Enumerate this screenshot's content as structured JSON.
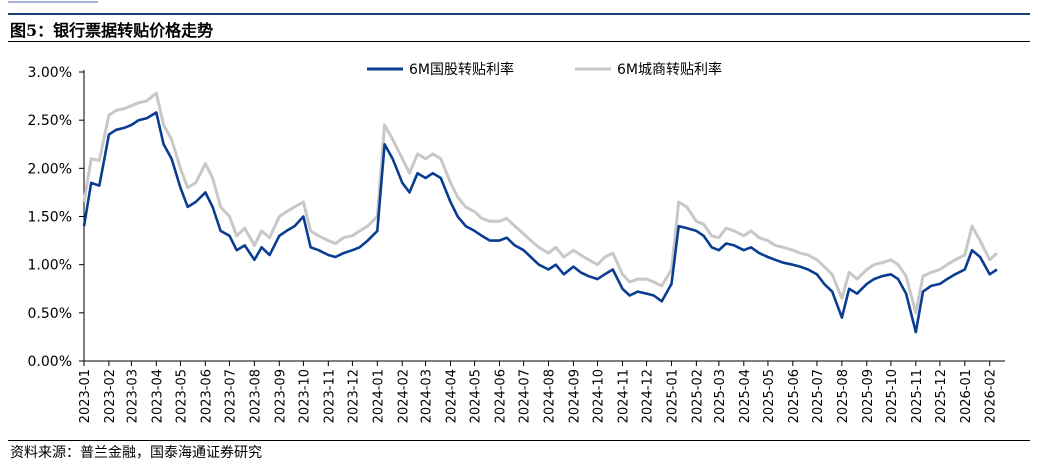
{
  "header": {
    "figure_title": "图5：银行票据转贴价格走势"
  },
  "footer": {
    "source": "资料来源：普兰金融，国泰海通证券研究"
  },
  "colors": {
    "series_1": "#0a3d91",
    "series_2": "#c8c8c8"
  },
  "chart_data": {
    "type": "line",
    "title": "",
    "xlabel": "",
    "ylabel": "",
    "ylim": [
      0,
      0.03
    ],
    "y_ticks": [
      "0.00%",
      "0.50%",
      "1.00%",
      "1.50%",
      "2.00%",
      "2.50%",
      "3.00%"
    ],
    "y_tick_values": [
      0,
      0.005,
      0.01,
      0.015,
      0.02,
      0.025,
      0.03
    ],
    "x_ticks": [
      "2023-01",
      "2023-02",
      "2023-03",
      "2023-04",
      "2023-05",
      "2023-06",
      "2023-07",
      "2023-08",
      "2023-09",
      "2023-10",
      "2023-11",
      "2023-12",
      "2024-01",
      "2024-02",
      "2024-03",
      "2024-04",
      "2024-05",
      "2024-06",
      "2024-07",
      "2024-08",
      "2024-09",
      "2024-10",
      "2024-11",
      "2024-12",
      "2025-01",
      "2025-02",
      "2025-03",
      "2025-04",
      "2025-05",
      "2025-06",
      "2025-07",
      "2025-08",
      "2025-09",
      "2025-10",
      "2025-11",
      "2025-12",
      "2026-01",
      "2026-02"
    ],
    "legend_position": "top-center",
    "grid": false,
    "series": [
      {
        "name": "6M国股转贴利率",
        "x": [
          "2023-01-01",
          "2023-01-10",
          "2023-01-20",
          "2023-02-01",
          "2023-02-10",
          "2023-02-20",
          "2023-03-01",
          "2023-03-10",
          "2023-03-20",
          "2023-04-01",
          "2023-04-10",
          "2023-04-20",
          "2023-05-01",
          "2023-05-10",
          "2023-05-20",
          "2023-06-01",
          "2023-06-10",
          "2023-06-20",
          "2023-07-01",
          "2023-07-10",
          "2023-07-20",
          "2023-08-01",
          "2023-08-10",
          "2023-08-20",
          "2023-09-01",
          "2023-09-10",
          "2023-09-20",
          "2023-10-01",
          "2023-10-10",
          "2023-10-20",
          "2023-11-01",
          "2023-11-10",
          "2023-11-20",
          "2023-12-01",
          "2023-12-10",
          "2023-12-20",
          "2024-01-01",
          "2024-01-10",
          "2024-01-20",
          "2024-02-01",
          "2024-02-10",
          "2024-02-20",
          "2024-03-01",
          "2024-03-10",
          "2024-03-20",
          "2024-04-01",
          "2024-04-10",
          "2024-04-20",
          "2024-05-01",
          "2024-05-10",
          "2024-05-20",
          "2024-06-01",
          "2024-06-10",
          "2024-06-20",
          "2024-07-01",
          "2024-07-10",
          "2024-07-20",
          "2024-08-01",
          "2024-08-10",
          "2024-08-20",
          "2024-09-01",
          "2024-09-10",
          "2024-09-20",
          "2024-10-01",
          "2024-10-10",
          "2024-10-20",
          "2024-11-01",
          "2024-11-10",
          "2024-11-20",
          "2024-12-01",
          "2024-12-10",
          "2024-12-20",
          "2025-01-01",
          "2025-01-10",
          "2025-01-20",
          "2025-02-01",
          "2025-02-10",
          "2025-02-20",
          "2025-03-01",
          "2025-03-10",
          "2025-03-20",
          "2025-04-01",
          "2025-04-10",
          "2025-04-20",
          "2025-05-01",
          "2025-05-10",
          "2025-05-20",
          "2025-06-01",
          "2025-06-10",
          "2025-06-20",
          "2025-07-01",
          "2025-07-10",
          "2025-07-20",
          "2025-08-01",
          "2025-08-10",
          "2025-08-20",
          "2025-09-01",
          "2025-09-10",
          "2025-09-20",
          "2025-10-01",
          "2025-10-10",
          "2025-10-20",
          "2025-11-01",
          "2025-11-10",
          "2025-11-20",
          "2025-12-01",
          "2025-12-10",
          "2025-12-20",
          "2026-01-01",
          "2026-01-10",
          "2026-01-20",
          "2026-02-01",
          "2026-02-10"
        ],
        "y": [
          0.014,
          0.0185,
          0.0182,
          0.0235,
          0.024,
          0.0242,
          0.0245,
          0.025,
          0.0252,
          0.0258,
          0.0225,
          0.021,
          0.018,
          0.016,
          0.0165,
          0.0175,
          0.016,
          0.0135,
          0.013,
          0.0115,
          0.012,
          0.0105,
          0.0118,
          0.011,
          0.013,
          0.0135,
          0.014,
          0.015,
          0.0118,
          0.0115,
          0.011,
          0.0108,
          0.0112,
          0.0115,
          0.0118,
          0.0125,
          0.0135,
          0.0225,
          0.021,
          0.0185,
          0.0175,
          0.0195,
          0.019,
          0.0195,
          0.019,
          0.0165,
          0.015,
          0.014,
          0.0135,
          0.013,
          0.0125,
          0.0125,
          0.0128,
          0.012,
          0.0115,
          0.0108,
          0.01,
          0.0095,
          0.01,
          0.009,
          0.0098,
          0.0092,
          0.0088,
          0.0085,
          0.009,
          0.0095,
          0.0075,
          0.0068,
          0.0072,
          0.007,
          0.0068,
          0.0062,
          0.008,
          0.014,
          0.0138,
          0.0135,
          0.013,
          0.0118,
          0.0115,
          0.0122,
          0.012,
          0.0115,
          0.0118,
          0.0112,
          0.0108,
          0.0105,
          0.0102,
          0.01,
          0.0098,
          0.0095,
          0.009,
          0.008,
          0.0072,
          0.0045,
          0.0075,
          0.007,
          0.008,
          0.0085,
          0.0088,
          0.009,
          0.0085,
          0.007,
          0.003,
          0.0072,
          0.0078,
          0.008,
          0.0085,
          0.009,
          0.0095,
          0.0115,
          0.0108,
          0.009,
          0.0095
        ]
      },
      {
        "name": "6M城商转贴利率",
        "x": [
          "2023-01-01",
          "2023-01-10",
          "2023-01-20",
          "2023-02-01",
          "2023-02-10",
          "2023-02-20",
          "2023-03-01",
          "2023-03-10",
          "2023-03-20",
          "2023-04-01",
          "2023-04-10",
          "2023-04-20",
          "2023-05-01",
          "2023-05-10",
          "2023-05-20",
          "2023-06-01",
          "2023-06-10",
          "2023-06-20",
          "2023-07-01",
          "2023-07-10",
          "2023-07-20",
          "2023-08-01",
          "2023-08-10",
          "2023-08-20",
          "2023-09-01",
          "2023-09-10",
          "2023-09-20",
          "2023-10-01",
          "2023-10-10",
          "2023-10-20",
          "2023-11-01",
          "2023-11-10",
          "2023-11-20",
          "2023-12-01",
          "2023-12-10",
          "2023-12-20",
          "2024-01-01",
          "2024-01-10",
          "2024-01-20",
          "2024-02-01",
          "2024-02-10",
          "2024-02-20",
          "2024-03-01",
          "2024-03-10",
          "2024-03-20",
          "2024-04-01",
          "2024-04-10",
          "2024-04-20",
          "2024-05-01",
          "2024-05-10",
          "2024-05-20",
          "2024-06-01",
          "2024-06-10",
          "2024-06-20",
          "2024-07-01",
          "2024-07-10",
          "2024-07-20",
          "2024-08-01",
          "2024-08-10",
          "2024-08-20",
          "2024-09-01",
          "2024-09-10",
          "2024-09-20",
          "2024-10-01",
          "2024-10-10",
          "2024-10-20",
          "2024-11-01",
          "2024-11-10",
          "2024-11-20",
          "2024-12-01",
          "2024-12-10",
          "2024-12-20",
          "2025-01-01",
          "2025-01-10",
          "2025-01-20",
          "2025-02-01",
          "2025-02-10",
          "2025-02-20",
          "2025-03-01",
          "2025-03-10",
          "2025-03-20",
          "2025-04-01",
          "2025-04-10",
          "2025-04-20",
          "2025-05-01",
          "2025-05-10",
          "2025-05-20",
          "2025-06-01",
          "2025-06-10",
          "2025-06-20",
          "2025-07-01",
          "2025-07-10",
          "2025-07-20",
          "2025-08-01",
          "2025-08-10",
          "2025-08-20",
          "2025-09-01",
          "2025-09-10",
          "2025-09-20",
          "2025-10-01",
          "2025-10-10",
          "2025-10-20",
          "2025-11-01",
          "2025-11-10",
          "2025-11-20",
          "2025-12-01",
          "2025-12-10",
          "2025-12-20",
          "2026-01-01",
          "2026-01-10",
          "2026-01-20",
          "2026-02-01",
          "2026-02-10"
        ],
        "y": [
          0.0165,
          0.021,
          0.0208,
          0.0255,
          0.026,
          0.0262,
          0.0265,
          0.0268,
          0.027,
          0.0278,
          0.0245,
          0.023,
          0.02,
          0.018,
          0.0185,
          0.0205,
          0.019,
          0.016,
          0.015,
          0.013,
          0.0138,
          0.012,
          0.0135,
          0.0128,
          0.015,
          0.0155,
          0.016,
          0.0165,
          0.0135,
          0.013,
          0.0125,
          0.0122,
          0.0128,
          0.013,
          0.0135,
          0.014,
          0.015,
          0.0245,
          0.023,
          0.021,
          0.0195,
          0.0215,
          0.021,
          0.0215,
          0.021,
          0.0185,
          0.017,
          0.016,
          0.0155,
          0.0148,
          0.0145,
          0.0145,
          0.0148,
          0.014,
          0.0132,
          0.0125,
          0.0118,
          0.0112,
          0.0118,
          0.0108,
          0.0115,
          0.011,
          0.0105,
          0.01,
          0.0108,
          0.0112,
          0.009,
          0.0082,
          0.0085,
          0.0085,
          0.0082,
          0.0078,
          0.0095,
          0.0165,
          0.016,
          0.0145,
          0.0142,
          0.013,
          0.0128,
          0.0138,
          0.0135,
          0.013,
          0.0135,
          0.0128,
          0.0125,
          0.012,
          0.0118,
          0.0115,
          0.0112,
          0.011,
          0.0105,
          0.0098,
          0.009,
          0.0065,
          0.0092,
          0.0085,
          0.0095,
          0.01,
          0.0102,
          0.0105,
          0.01,
          0.0088,
          0.005,
          0.0088,
          0.0092,
          0.0095,
          0.01,
          0.0105,
          0.011,
          0.014,
          0.0125,
          0.0105,
          0.0112
        ]
      }
    ]
  }
}
